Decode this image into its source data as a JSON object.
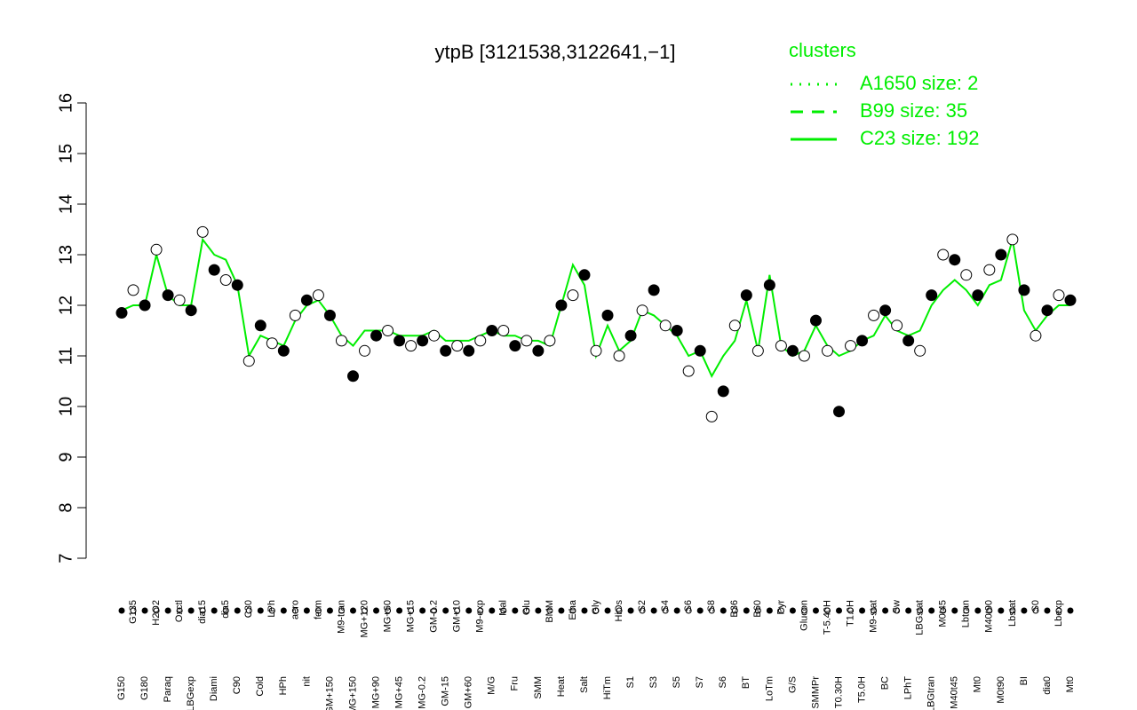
{
  "chart_data": {
    "type": "line",
    "title": "ytpB [3121538,3122641,−1]",
    "categories": [
      "G150",
      "G135",
      "G180",
      "H2O2",
      "Paraq",
      "Oxctl",
      "LBGexp",
      "dia15",
      "Diami",
      "dia5",
      "C90",
      "C30",
      "Cold",
      "LPh",
      "HPh",
      "aero",
      "nit",
      "ferm",
      "GM+150",
      "M9-tran",
      "MG+150",
      "MG+120",
      "MG+90",
      "MG+60",
      "MG+45",
      "MG+15",
      "MG-0.2",
      "GM-0.2",
      "GM-15",
      "GM+10",
      "GM+60",
      "M9-exp",
      "M/G",
      "Mal",
      "Fru",
      "Glu",
      "SMM",
      "BMM",
      "Heat",
      "Etha",
      "Salt",
      "Gly",
      "HiTm",
      "HiOs",
      "S1",
      "S2",
      "S3",
      "S4",
      "S5",
      "S6",
      "S7",
      "S8",
      "S6",
      "B36",
      "BT",
      "B60",
      "LoTm",
      "Pyr",
      "G/S",
      "Glucon",
      "SMMPr",
      "T-5.40H",
      "T0.30H",
      "T1.0H",
      "T5.0H",
      "M9-stat",
      "BC",
      "Sw",
      "LPhT",
      "LBGstat",
      "LBGtran",
      "M0t45",
      "M40t45",
      "Lbtran",
      "Mt0",
      "M40t90",
      "M0t90",
      "Lbstat",
      "BI",
      "S0",
      "dia0",
      "Lbexp",
      "Mt0"
    ],
    "values": [
      11.85,
      12.3,
      12.0,
      13.1,
      12.2,
      12.1,
      11.9,
      13.45,
      12.7,
      12.5,
      12.4,
      10.9,
      11.6,
      11.25,
      11.1,
      11.8,
      12.1,
      12.2,
      11.8,
      11.3,
      10.6,
      11.1,
      11.4,
      11.5,
      11.3,
      11.2,
      11.3,
      11.4,
      11.1,
      11.2,
      11.1,
      11.3,
      11.5,
      11.5,
      11.2,
      11.3,
      11.1,
      11.3,
      12.0,
      12.2,
      12.6,
      11.1,
      11.8,
      11.0,
      11.4,
      11.9,
      12.3,
      11.6,
      11.5,
      10.7,
      11.1,
      9.8,
      10.3,
      11.6,
      12.2,
      11.1,
      12.4,
      11.2,
      11.1,
      11.0,
      11.7,
      11.1,
      9.9,
      11.2,
      11.3,
      11.8,
      11.9,
      11.6,
      11.3,
      11.1,
      12.2,
      13.0,
      12.9,
      12.6,
      12.2,
      12.7,
      13.0,
      13.3,
      12.3,
      11.4,
      11.9,
      12.2,
      12.1
    ],
    "line_values": [
      11.9,
      12.0,
      12.0,
      13.0,
      12.2,
      12.0,
      12.0,
      13.3,
      13.0,
      12.9,
      12.4,
      11.0,
      11.4,
      11.3,
      11.2,
      11.7,
      12.0,
      12.1,
      11.8,
      11.4,
      11.2,
      11.5,
      11.5,
      11.5,
      11.4,
      11.4,
      11.4,
      11.5,
      11.3,
      11.3,
      11.3,
      11.4,
      11.5,
      11.4,
      11.4,
      11.3,
      11.3,
      11.2,
      12.0,
      12.8,
      12.4,
      11.0,
      11.6,
      11.1,
      11.3,
      11.9,
      11.8,
      11.6,
      11.4,
      11.0,
      11.1,
      10.6,
      11.0,
      11.3,
      12.1,
      11.1,
      12.6,
      11.2,
      11.0,
      11.1,
      11.6,
      11.2,
      11.0,
      11.1,
      11.3,
      11.4,
      11.8,
      11.5,
      11.4,
      11.5,
      12.0,
      12.3,
      12.5,
      12.3,
      12.0,
      12.4,
      12.5,
      13.3,
      11.9,
      11.5,
      11.8,
      12.0,
      12.0
    ],
    "line_color": "#00ee00",
    "ylim": [
      7,
      16
    ],
    "yticks": [
      7,
      8,
      9,
      10,
      11,
      12,
      13,
      14,
      15,
      16
    ],
    "legend": {
      "title": "clusters",
      "color": "#00ee00",
      "items": [
        {
          "name": "A1650 size: 2",
          "style": "dotted"
        },
        {
          "name": "B99 size: 35",
          "style": "dashed"
        },
        {
          "name": "C23 size: 192",
          "style": "solid"
        }
      ]
    }
  }
}
